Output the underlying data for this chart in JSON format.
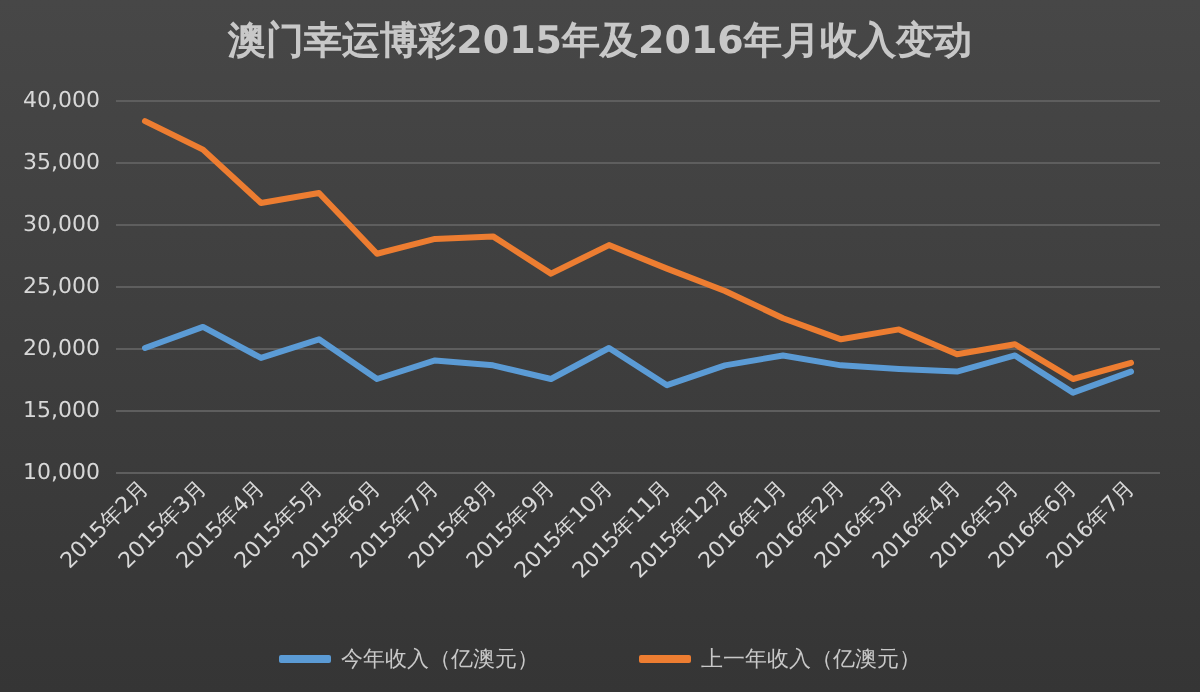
{
  "chart_data": {
    "type": "line",
    "title": "澳门幸运博彩2015年及2016年月收入变动",
    "categories": [
      "2015年2月",
      "2015年3月",
      "2015年4月",
      "2015年5月",
      "2015年6月",
      "2015年7月",
      "2015年8月",
      "2015年9月",
      "2015年10月",
      "2015年11月",
      "2015年12月",
      "2016年1月",
      "2016年2月",
      "2016年3月",
      "2016年4月",
      "2016年5月",
      "2016年6月",
      "2016年7月"
    ],
    "series": [
      {
        "name": "今年收入（亿澳元）",
        "color": "#5b9bd5",
        "values": [
          20000,
          21700,
          19200,
          20700,
          17500,
          19000,
          18600,
          17500,
          20000,
          17000,
          18600,
          19400,
          18600,
          18300,
          18100,
          19400,
          16400,
          18100
        ]
      },
      {
        "name": "上一年收入（亿澳元）",
        "color": "#ed7d31",
        "values": [
          38300,
          36000,
          31700,
          32500,
          27600,
          28800,
          29000,
          26000,
          28300,
          26400,
          24600,
          22400,
          20700,
          21500,
          19500,
          20300,
          17500,
          18800
        ]
      }
    ],
    "ylim": [
      10000,
      40000
    ],
    "yticks": [
      {
        "value": 10000,
        "label": "10,000"
      },
      {
        "value": 15000,
        "label": "15,000"
      },
      {
        "value": 20000,
        "label": "20,000"
      },
      {
        "value": 25000,
        "label": "25,000"
      },
      {
        "value": 30000,
        "label": "30,000"
      },
      {
        "value": 35000,
        "label": "35,000"
      },
      {
        "value": 40000,
        "label": "40,000"
      }
    ],
    "grid": "y",
    "legend": "bottom",
    "marker": "none",
    "line_style": "solid"
  }
}
